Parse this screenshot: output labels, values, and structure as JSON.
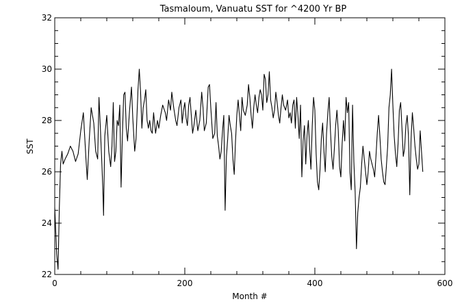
{
  "chart_data": {
    "type": "line",
    "title": "Tasmaloum, Vanuatu SST for ^4200 Yr BP",
    "xlabel": "Month #",
    "ylabel": "SST",
    "xlim": [
      0,
      600
    ],
    "ylim": [
      22,
      32
    ],
    "xticks": [
      0,
      200,
      400,
      600
    ],
    "yticks": [
      22,
      24,
      26,
      28,
      30,
      32
    ],
    "grid": false,
    "series": [
      {
        "color": "#000000",
        "points": [
          [
            0,
            24.6
          ],
          [
            3,
            22.8
          ],
          [
            5,
            22.2
          ],
          [
            7,
            24.6
          ],
          [
            9,
            26.3
          ],
          [
            11,
            26.8
          ],
          [
            13,
            26.3
          ],
          [
            16,
            26.5
          ],
          [
            20,
            26.7
          ],
          [
            24,
            27.0
          ],
          [
            28,
            26.8
          ],
          [
            32,
            26.4
          ],
          [
            36,
            26.7
          ],
          [
            40,
            27.6
          ],
          [
            44,
            28.3
          ],
          [
            48,
            26.5
          ],
          [
            50,
            25.7
          ],
          [
            53,
            27.2
          ],
          [
            56,
            28.5
          ],
          [
            60,
            27.9
          ],
          [
            63,
            26.8
          ],
          [
            66,
            26.5
          ],
          [
            68,
            28.9
          ],
          [
            70,
            27.8
          ],
          [
            72,
            26.6
          ],
          [
            74,
            25.3
          ],
          [
            75,
            24.3
          ],
          [
            77,
            27.4
          ],
          [
            80,
            28.2
          ],
          [
            83,
            26.8
          ],
          [
            86,
            26.2
          ],
          [
            88,
            27.0
          ],
          [
            90,
            28.7
          ],
          [
            92,
            26.4
          ],
          [
            94,
            26.8
          ],
          [
            96,
            28.0
          ],
          [
            98,
            27.8
          ],
          [
            100,
            28.6
          ],
          [
            102,
            25.4
          ],
          [
            104,
            27.4
          ],
          [
            106,
            29.0
          ],
          [
            108,
            29.1
          ],
          [
            110,
            27.7
          ],
          [
            112,
            27.2
          ],
          [
            115,
            28.4
          ],
          [
            118,
            29.3
          ],
          [
            120,
            28.1
          ],
          [
            123,
            26.8
          ],
          [
            125,
            27.3
          ],
          [
            128,
            29.2
          ],
          [
            130,
            30.0
          ],
          [
            132,
            29.1
          ],
          [
            134,
            27.7
          ],
          [
            136,
            28.5
          ],
          [
            138,
            28.8
          ],
          [
            140,
            29.2
          ],
          [
            142,
            28.0
          ],
          [
            144,
            27.7
          ],
          [
            146,
            28.0
          ],
          [
            148,
            27.6
          ],
          [
            150,
            27.5
          ],
          [
            152,
            28.3
          ],
          [
            155,
            27.5
          ],
          [
            158,
            28.0
          ],
          [
            160,
            27.7
          ],
          [
            163,
            28.2
          ],
          [
            166,
            28.6
          ],
          [
            170,
            28.3
          ],
          [
            172,
            28.0
          ],
          [
            175,
            28.8
          ],
          [
            178,
            28.4
          ],
          [
            180,
            29.1
          ],
          [
            183,
            28.5
          ],
          [
            186,
            28.0
          ],
          [
            188,
            27.8
          ],
          [
            191,
            28.5
          ],
          [
            194,
            28.8
          ],
          [
            196,
            27.9
          ],
          [
            198,
            28.4
          ],
          [
            200,
            28.7
          ],
          [
            202,
            28.1
          ],
          [
            204,
            27.8
          ],
          [
            206,
            28.6
          ],
          [
            208,
            28.9
          ],
          [
            210,
            28.2
          ],
          [
            212,
            27.5
          ],
          [
            214,
            27.8
          ],
          [
            217,
            28.4
          ],
          [
            220,
            27.6
          ],
          [
            223,
            28.0
          ],
          [
            226,
            29.1
          ],
          [
            228,
            28.5
          ],
          [
            230,
            27.6
          ],
          [
            233,
            27.9
          ],
          [
            236,
            29.3
          ],
          [
            238,
            29.4
          ],
          [
            240,
            28.5
          ],
          [
            243,
            27.3
          ],
          [
            246,
            27.5
          ],
          [
            248,
            28.7
          ],
          [
            250,
            27.4
          ],
          [
            252,
            27.0
          ],
          [
            254,
            26.5
          ],
          [
            256,
            26.8
          ],
          [
            258,
            27.6
          ],
          [
            260,
            28.2
          ],
          [
            262,
            24.5
          ],
          [
            264,
            26.6
          ],
          [
            266,
            27.3
          ],
          [
            268,
            28.2
          ],
          [
            270,
            27.8
          ],
          [
            272,
            27.5
          ],
          [
            274,
            26.5
          ],
          [
            276,
            25.9
          ],
          [
            278,
            27.2
          ],
          [
            280,
            28.2
          ],
          [
            282,
            28.8
          ],
          [
            284,
            28.2
          ],
          [
            286,
            27.6
          ],
          [
            288,
            28.9
          ],
          [
            290,
            28.4
          ],
          [
            293,
            28.2
          ],
          [
            296,
            28.6
          ],
          [
            298,
            29.4
          ],
          [
            300,
            28.9
          ],
          [
            302,
            28.2
          ],
          [
            304,
            27.7
          ],
          [
            306,
            28.5
          ],
          [
            308,
            29.0
          ],
          [
            310,
            28.6
          ],
          [
            312,
            28.3
          ],
          [
            314,
            28.9
          ],
          [
            316,
            29.2
          ],
          [
            318,
            29.0
          ],
          [
            320,
            28.4
          ],
          [
            322,
            29.8
          ],
          [
            324,
            29.6
          ],
          [
            326,
            28.7
          ],
          [
            328,
            29.0
          ],
          [
            330,
            29.9
          ],
          [
            332,
            28.8
          ],
          [
            334,
            28.5
          ],
          [
            336,
            28.1
          ],
          [
            338,
            28.4
          ],
          [
            340,
            29.1
          ],
          [
            342,
            28.7
          ],
          [
            344,
            28.2
          ],
          [
            346,
            27.9
          ],
          [
            348,
            28.5
          ],
          [
            350,
            29.0
          ],
          [
            352,
            28.6
          ],
          [
            355,
            28.4
          ],
          [
            358,
            28.8
          ],
          [
            360,
            28.1
          ],
          [
            362,
            28.3
          ],
          [
            364,
            27.9
          ],
          [
            366,
            28.6
          ],
          [
            368,
            28.8
          ],
          [
            370,
            27.7
          ],
          [
            372,
            28.9
          ],
          [
            374,
            28.2
          ],
          [
            376,
            27.3
          ],
          [
            378,
            28.6
          ],
          [
            380,
            25.8
          ],
          [
            382,
            27.2
          ],
          [
            384,
            27.8
          ],
          [
            386,
            26.3
          ],
          [
            388,
            27.4
          ],
          [
            390,
            28.0
          ],
          [
            392,
            26.9
          ],
          [
            394,
            26.1
          ],
          [
            396,
            27.8
          ],
          [
            398,
            28.9
          ],
          [
            400,
            28.4
          ],
          [
            402,
            26.7
          ],
          [
            404,
            25.6
          ],
          [
            406,
            25.3
          ],
          [
            408,
            26.1
          ],
          [
            410,
            27.3
          ],
          [
            412,
            27.9
          ],
          [
            414,
            26.8
          ],
          [
            416,
            26.0
          ],
          [
            418,
            27.5
          ],
          [
            420,
            28.3
          ],
          [
            422,
            28.9
          ],
          [
            424,
            27.6
          ],
          [
            426,
            26.6
          ],
          [
            428,
            26.1
          ],
          [
            430,
            26.9
          ],
          [
            432,
            27.8
          ],
          [
            434,
            28.4
          ],
          [
            436,
            27.6
          ],
          [
            438,
            26.2
          ],
          [
            440,
            25.8
          ],
          [
            442,
            27.1
          ],
          [
            444,
            28.0
          ],
          [
            446,
            27.2
          ],
          [
            448,
            28.9
          ],
          [
            450,
            28.3
          ],
          [
            452,
            28.7
          ],
          [
            454,
            26.0
          ],
          [
            456,
            25.3
          ],
          [
            458,
            28.6
          ],
          [
            460,
            26.4
          ],
          [
            462,
            25.2
          ],
          [
            464,
            23.0
          ],
          [
            466,
            24.4
          ],
          [
            468,
            25.0
          ],
          [
            470,
            25.4
          ],
          [
            472,
            26.3
          ],
          [
            474,
            27.0
          ],
          [
            476,
            26.5
          ],
          [
            478,
            26.0
          ],
          [
            480,
            25.5
          ],
          [
            482,
            26.0
          ],
          [
            484,
            26.8
          ],
          [
            486,
            26.5
          ],
          [
            488,
            26.3
          ],
          [
            490,
            26.1
          ],
          [
            492,
            25.8
          ],
          [
            494,
            26.6
          ],
          [
            496,
            27.5
          ],
          [
            498,
            28.2
          ],
          [
            500,
            27.4
          ],
          [
            502,
            26.5
          ],
          [
            504,
            26.0
          ],
          [
            506,
            25.6
          ],
          [
            508,
            25.5
          ],
          [
            510,
            26.2
          ],
          [
            512,
            27.0
          ],
          [
            514,
            28.5
          ],
          [
            516,
            29.0
          ],
          [
            518,
            30.0
          ],
          [
            520,
            28.6
          ],
          [
            522,
            27.4
          ],
          [
            524,
            26.7
          ],
          [
            526,
            26.2
          ],
          [
            528,
            27.1
          ],
          [
            530,
            28.4
          ],
          [
            532,
            28.7
          ],
          [
            534,
            27.7
          ],
          [
            536,
            26.6
          ],
          [
            538,
            26.9
          ],
          [
            540,
            27.8
          ],
          [
            542,
            28.2
          ],
          [
            544,
            27.4
          ],
          [
            546,
            25.1
          ],
          [
            548,
            27.3
          ],
          [
            550,
            28.3
          ],
          [
            552,
            27.7
          ],
          [
            554,
            27.0
          ],
          [
            556,
            26.5
          ],
          [
            558,
            26.1
          ],
          [
            560,
            26.3
          ],
          [
            562,
            27.6
          ],
          [
            564,
            26.8
          ],
          [
            566,
            26.0
          ]
        ]
      }
    ]
  }
}
